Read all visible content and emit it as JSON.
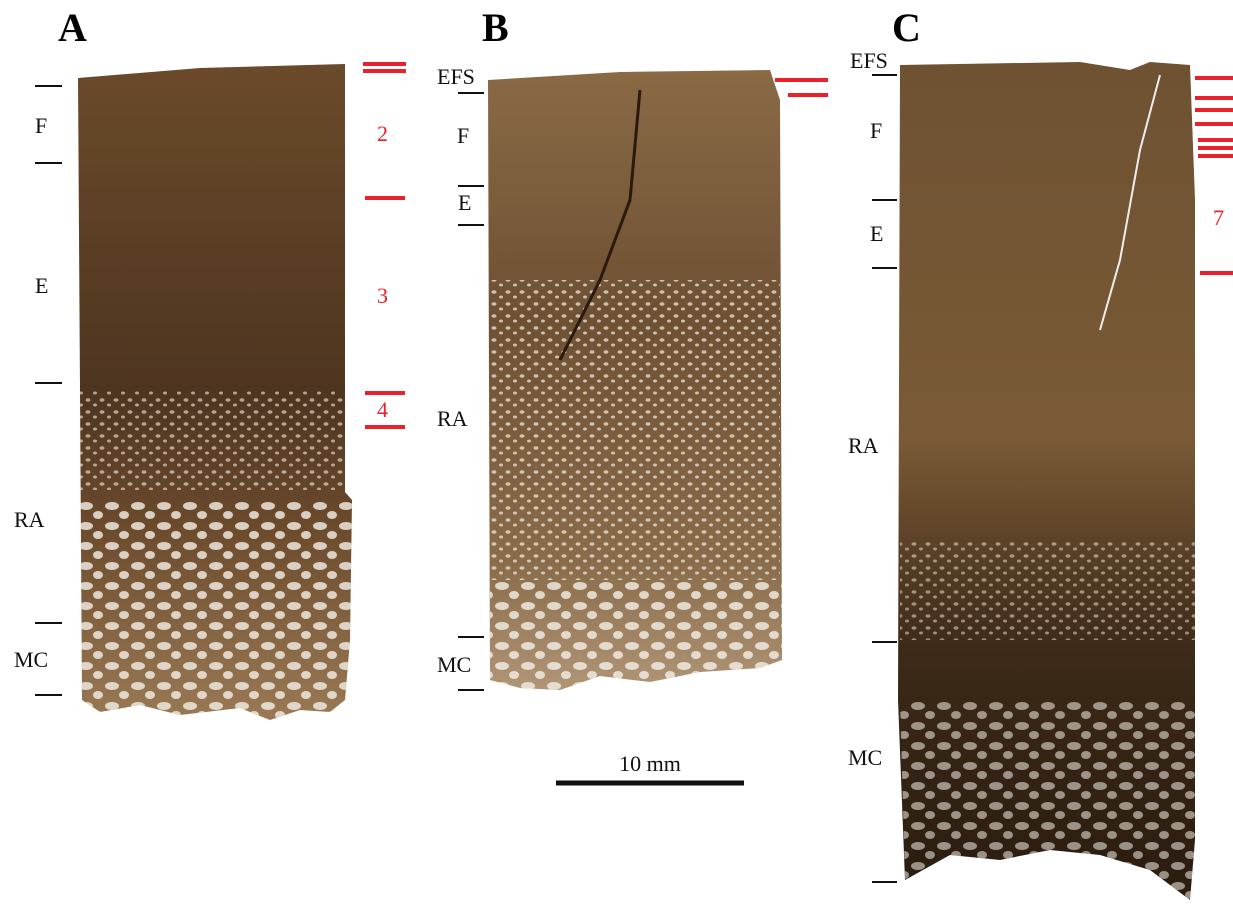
{
  "panels": [
    {
      "label": "A",
      "zones": [
        "F",
        "E",
        "RA",
        "MC"
      ],
      "counts": [
        2,
        3,
        4
      ]
    },
    {
      "label": "B",
      "zones": [
        "EFS",
        "F",
        "E",
        "RA",
        "MC"
      ]
    },
    {
      "label": "C",
      "zones": [
        "EFS",
        "F",
        "E",
        "RA",
        "MC"
      ],
      "counts": [
        7
      ]
    }
  ],
  "scale_bar": "10 mm"
}
